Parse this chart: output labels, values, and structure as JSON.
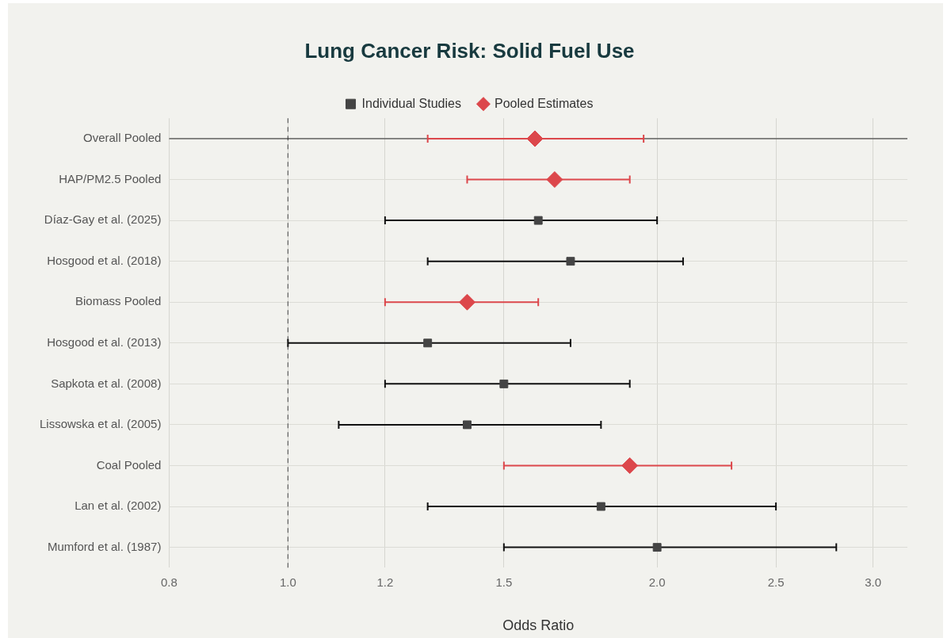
{
  "chart_data": {
    "type": "scatter",
    "title": "Lung Cancer Risk: Solid Fuel Use",
    "orientation": "horizontal",
    "categories": [
      "Overall Pooled",
      "HAP/PM2.5 Pooled",
      "Díaz-Gay et al. (2025)",
      "Hosgood et al. (2018)",
      "Biomass Pooled",
      "Hosgood et al. (2013)",
      "Sapkota et al. (2008)",
      "Lissowska et al. (2005)",
      "Coal Pooled",
      "Lan et al. (2002)",
      "Mumford et al. (1987)"
    ],
    "series": [
      {
        "name": "Individual Studies",
        "color": "#444444",
        "marker": "square",
        "values": [
          null,
          null,
          1.6,
          1.7,
          null,
          1.3,
          1.5,
          1.4,
          null,
          1.8,
          2.0
        ],
        "errors": [
          null,
          null,
          [
            1.2,
            2.0
          ],
          [
            1.3,
            2.1
          ],
          null,
          [
            1.0,
            1.7
          ],
          [
            1.2,
            1.9
          ],
          [
            1.1,
            1.8
          ],
          null,
          [
            1.3,
            2.5
          ],
          [
            1.5,
            2.8
          ]
        ]
      },
      {
        "name": "Pooled Estimates",
        "color": "#dc474b",
        "marker": "diamond",
        "values": [
          1.59,
          1.65,
          null,
          null,
          1.4,
          null,
          null,
          null,
          1.9,
          null,
          null
        ],
        "errors": [
          [
            1.3,
            1.95
          ],
          [
            1.4,
            1.9
          ],
          null,
          null,
          [
            1.2,
            1.6
          ],
          null,
          null,
          null,
          [
            1.5,
            2.3
          ],
          null,
          null
        ]
      }
    ],
    "xlabel": "Odds Ratio",
    "log": "x",
    "xlim": [
      0.8,
      3.2
    ],
    "xticks": [
      0.8,
      {
        "value": 1,
        "label": "1.0"
      },
      1.2,
      1.5,
      {
        "value": 2,
        "label": "2.0"
      },
      2.5,
      {
        "value": 3,
        "label": "3.0"
      }
    ],
    "grid": true,
    "legend": "top",
    "ref_lines": [
      {
        "axis": "x",
        "value": 1,
        "color": "#666666",
        "line_style": "dashed"
      },
      {
        "axis": "y",
        "value": "Overall Pooled",
        "color": "#222222",
        "line_style": "solid"
      }
    ]
  }
}
